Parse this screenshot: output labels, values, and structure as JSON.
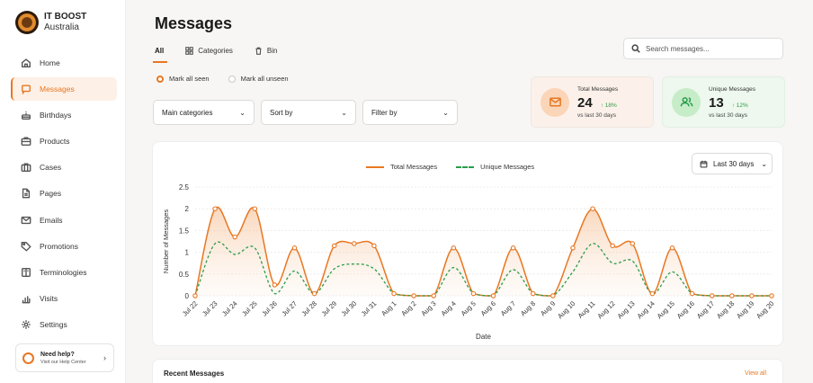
{
  "brand": {
    "name": "IT BOOST",
    "region": "Australia"
  },
  "sidebar": {
    "items": [
      {
        "label": "Home",
        "icon": "home-icon",
        "active": false
      },
      {
        "label": "Messages",
        "icon": "message-icon",
        "active": true
      },
      {
        "label": "Birthdays",
        "icon": "cake-icon",
        "active": false
      },
      {
        "label": "Products",
        "icon": "briefcase-icon",
        "active": false
      },
      {
        "label": "Cases",
        "icon": "suitcase-icon",
        "active": false
      },
      {
        "label": "Pages",
        "icon": "document-icon",
        "active": false
      },
      {
        "label": "Emails",
        "icon": "mail-icon",
        "active": false
      },
      {
        "label": "Promotions",
        "icon": "tag-icon",
        "active": false
      },
      {
        "label": "Terminologies",
        "icon": "book-icon",
        "active": false
      },
      {
        "label": "Visits",
        "icon": "bar-chart-icon",
        "active": false
      },
      {
        "label": "Settings",
        "icon": "gear-icon",
        "active": false
      }
    ],
    "help": {
      "title": "Need help?",
      "subtitle": "Visit our Help Center"
    }
  },
  "header": {
    "title": "Messages"
  },
  "tabs": [
    {
      "label": "All",
      "active": true
    },
    {
      "label": "Categories",
      "active": false
    },
    {
      "label": "Bin",
      "active": false
    }
  ],
  "search": {
    "placeholder": "Search messages..."
  },
  "radios": [
    {
      "label": "Mark all seen",
      "checked": true
    },
    {
      "label": "Mark all unseen",
      "checked": false
    }
  ],
  "filters": {
    "category": "Main categories",
    "sort": "Sort by",
    "filter": "Filter by"
  },
  "stats": {
    "total": {
      "label": "Total Messages",
      "value": "24",
      "change": "↑ 18%",
      "sub": "vs last 30 days"
    },
    "unique": {
      "label": "Unique Messages",
      "value": "13",
      "change": "↑ 12%",
      "sub": "vs last 30 days"
    }
  },
  "range": {
    "label": "Last 30 days"
  },
  "colors": {
    "accent": "#e87722",
    "green": "#2a9d4b"
  },
  "chart_data": {
    "type": "line",
    "x": [
      "Jul 22",
      "Jul 23",
      "Jul 24",
      "Jul 25",
      "Jul 26",
      "Jul 27",
      "Jul 28",
      "Jul 29",
      "Jul 30",
      "Jul 31",
      "Aug 1",
      "Aug 2",
      "Aug 3",
      "Aug 4",
      "Aug 5",
      "Aug 6",
      "Aug 7",
      "Aug 8",
      "Aug 9",
      "Aug 10",
      "Aug 11",
      "Aug 12",
      "Aug 13",
      "Aug 14",
      "Aug 15",
      "Aug 16",
      "Aug 17",
      "Aug 18",
      "Aug 19",
      "Aug 20"
    ],
    "series": [
      {
        "name": "Total Messages",
        "style": "solid-area",
        "color": "#e87722",
        "values": [
          0,
          2,
          1.35,
          2,
          0.25,
          1.1,
          0.05,
          1.15,
          1.2,
          1.15,
          0.05,
          0,
          0,
          1.1,
          0.05,
          0,
          1.1,
          0.05,
          0,
          1.1,
          2,
          1.15,
          1.2,
          0.05,
          1.1,
          0.05,
          0,
          0,
          0,
          0
        ]
      },
      {
        "name": "Unique Messages",
        "style": "dashed",
        "color": "#2a9d4b",
        "values": [
          0,
          1.2,
          0.95,
          1.1,
          0.05,
          0.57,
          0.05,
          0.62,
          0.73,
          0.62,
          0.05,
          0,
          0,
          0.65,
          0.05,
          0,
          0.6,
          0.05,
          0,
          0.55,
          1.2,
          0.75,
          0.8,
          0.05,
          0.55,
          0.05,
          0,
          0,
          0,
          0
        ]
      }
    ],
    "xlabel": "Date",
    "ylabel": "Number of Messages",
    "ylim": [
      0,
      2.5
    ],
    "yticks": [
      "0",
      "0.5",
      "1",
      "1.5",
      "2",
      "2.5"
    ],
    "grid": true,
    "legend": "top-center"
  },
  "recent": {
    "title": "Recent Messages",
    "view_all": "View all"
  }
}
